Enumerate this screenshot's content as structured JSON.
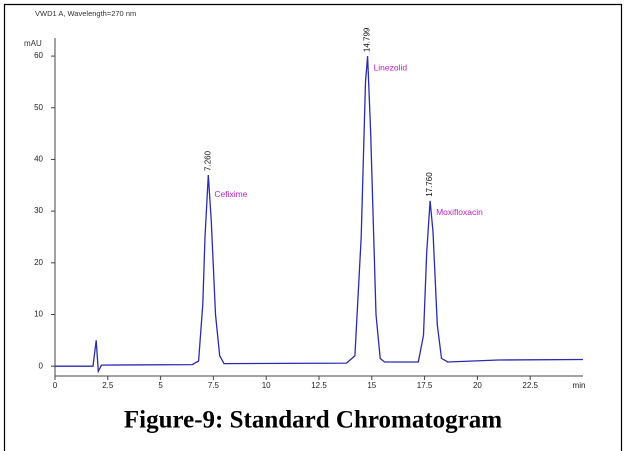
{
  "chart_data": {
    "type": "line",
    "title": "VWD1 A, Wavelength=270 nm",
    "y_label": "mAU",
    "x_label": "min",
    "caption": "Figure-9: Standard Chromatogram",
    "color": "#2b2bb0",
    "xlim": [
      0,
      25
    ],
    "ylim": [
      -1.9,
      63.5
    ],
    "xticks": [
      0,
      2.5,
      5,
      7.5,
      10,
      12.5,
      15,
      17.5,
      20,
      22.5
    ],
    "yticks": [
      0,
      10,
      20,
      30,
      40,
      50,
      60
    ],
    "x": [
      0,
      1.8,
      1.95,
      2.05,
      2.2,
      6.5,
      6.8,
      7.0,
      7.1,
      7.26,
      7.4,
      7.6,
      7.8,
      8.0,
      13.8,
      14.2,
      14.5,
      14.7,
      14.8,
      14.95,
      15.2,
      15.4,
      15.6,
      17.2,
      17.45,
      17.6,
      17.76,
      17.9,
      18.1,
      18.3,
      18.6,
      21,
      25
    ],
    "values": [
      0,
      0,
      5,
      -1,
      0.2,
      0.3,
      1,
      12,
      25,
      37,
      28,
      10,
      2,
      0.5,
      0.6,
      2,
      25,
      55,
      60,
      45,
      10,
      1.5,
      0.8,
      0.8,
      6,
      22,
      32,
      26,
      8,
      1.5,
      0.8,
      1.2,
      1.3
    ],
    "peaks": [
      {
        "time_label": "7.260",
        "name": "Cefixime",
        "x": 7.26,
        "height": 37
      },
      {
        "time_label": "14.799",
        "name": "Linezolid",
        "x": 14.8,
        "height": 60
      },
      {
        "time_label": "17.760",
        "name": "Moxifloxacin",
        "x": 17.76,
        "height": 32
      }
    ]
  }
}
